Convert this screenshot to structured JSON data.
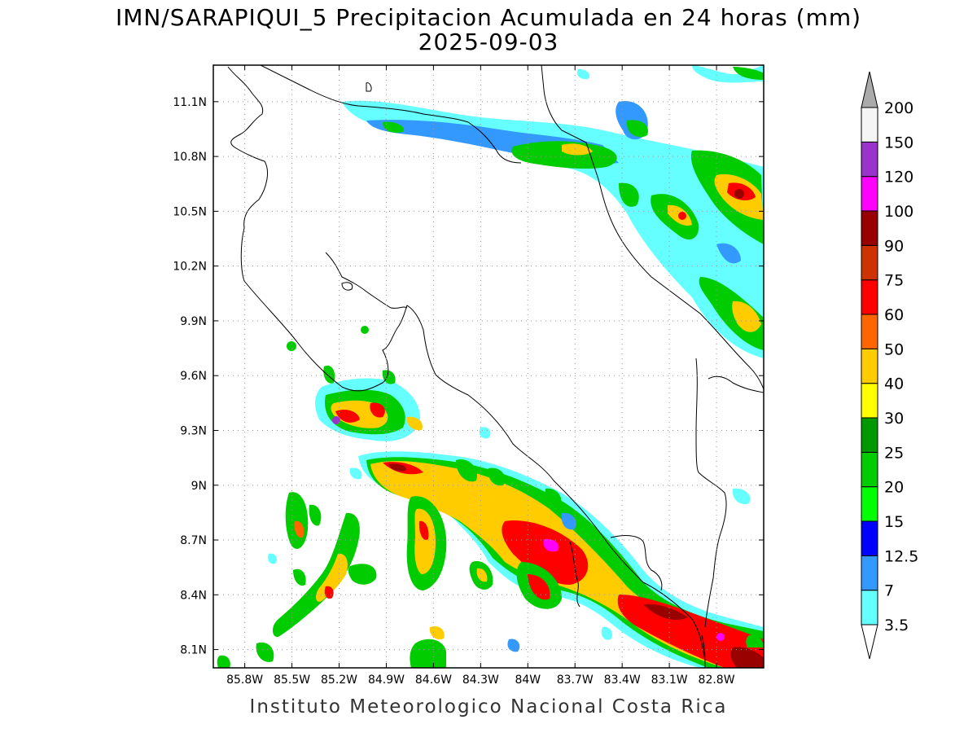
{
  "title": {
    "line1": "IMN/SARAPIQUI_5 Precipitacion Acumulada en 24 horas (mm)",
    "line2": "2025-09-03"
  },
  "footer": "Instituto Meteorologico Nacional Costa Rica",
  "map": {
    "lon_range": [
      -86.0,
      -82.5
    ],
    "lat_range": [
      8.0,
      11.3
    ],
    "lon_ticks": [
      {
        "label": "85.8W",
        "value": -85.8
      },
      {
        "label": "85.5W",
        "value": -85.5
      },
      {
        "label": "85.2W",
        "value": -85.2
      },
      {
        "label": "84.9W",
        "value": -84.9
      },
      {
        "label": "84.6W",
        "value": -84.6
      },
      {
        "label": "84.3W",
        "value": -84.3
      },
      {
        "label": "84W",
        "value": -84.0
      },
      {
        "label": "83.7W",
        "value": -83.7
      },
      {
        "label": "83.4W",
        "value": -83.4
      },
      {
        "label": "83.1W",
        "value": -83.1
      },
      {
        "label": "82.8W",
        "value": -82.8
      }
    ],
    "lat_ticks": [
      {
        "label": "8.1N",
        "value": 8.1
      },
      {
        "label": "8.4N",
        "value": 8.4
      },
      {
        "label": "8.7N",
        "value": 8.7
      },
      {
        "label": "9N",
        "value": 9.0
      },
      {
        "label": "9.3N",
        "value": 9.3
      },
      {
        "label": "9.6N",
        "value": 9.6
      },
      {
        "label": "9.9N",
        "value": 9.9
      },
      {
        "label": "10.2N",
        "value": 10.2
      },
      {
        "label": "10.5N",
        "value": 10.5
      },
      {
        "label": "10.8N",
        "value": 10.8
      },
      {
        "label": "11.1N",
        "value": 11.1
      }
    ]
  },
  "colorbar": {
    "levels": [
      {
        "label": "3.5",
        "color": "#66ffff"
      },
      {
        "label": "7",
        "color": "#3399ff"
      },
      {
        "label": "12.5",
        "color": "#0000ff"
      },
      {
        "label": "15",
        "color": "#00ff00"
      },
      {
        "label": "20",
        "color": "#00cc00"
      },
      {
        "label": "25",
        "color": "#009900"
      },
      {
        "label": "30",
        "color": "#ffff00"
      },
      {
        "label": "40",
        "color": "#ffcc00"
      },
      {
        "label": "50",
        "color": "#ff6600"
      },
      {
        "label": "60",
        "color": "#ff0000"
      },
      {
        "label": "75",
        "color": "#cc3300"
      },
      {
        "label": "90",
        "color": "#990000"
      },
      {
        "label": "100",
        "color": "#ff00ff"
      },
      {
        "label": "120",
        "color": "#9933cc"
      },
      {
        "label": "150",
        "color": "#f5f5f5"
      },
      {
        "label": "200",
        "color": "#aaaaaa"
      }
    ]
  }
}
